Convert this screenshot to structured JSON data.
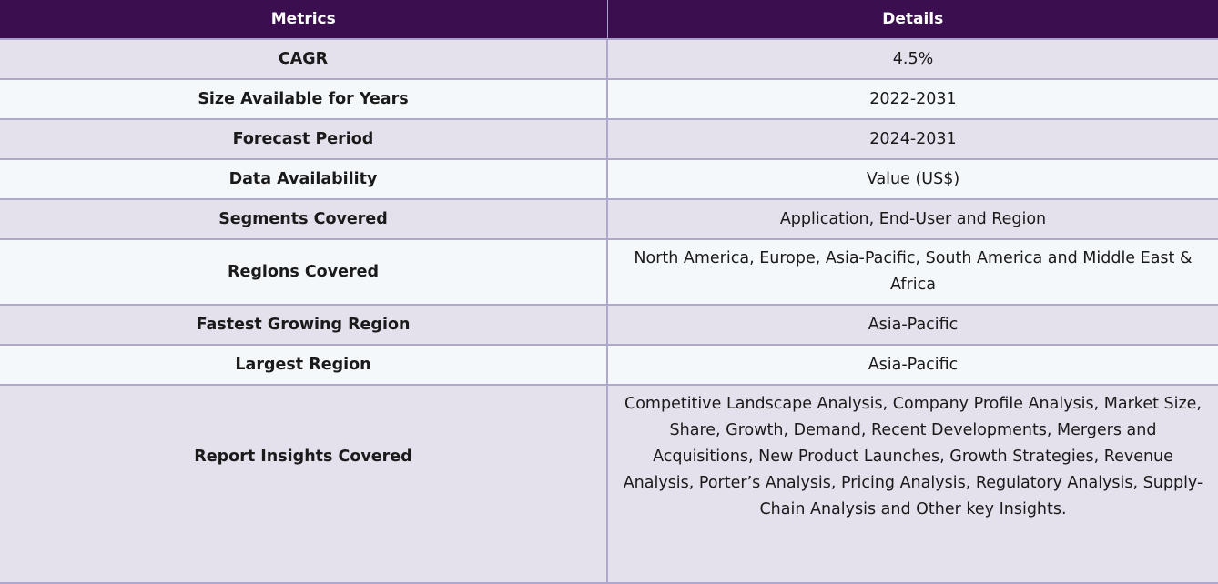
{
  "table": {
    "headers": [
      "Metrics",
      "Details"
    ],
    "rows": [
      {
        "metric": "CAGR",
        "details": "4.5%"
      },
      {
        "metric": "Size Available for Years",
        "details": "2022-2031"
      },
      {
        "metric": "Forecast Period",
        "details": "2024-2031"
      },
      {
        "metric": "Data Availability",
        "details": "Value (US$)"
      },
      {
        "metric": "Segments Covered",
        "details": "Application, End-User and Region"
      },
      {
        "metric": "Regions Covered",
        "details": "North America, Europe, Asia-Pacific, South America and Middle East & Africa"
      },
      {
        "metric": "Fastest Growing Region",
        "details": "Asia-Pacific"
      },
      {
        "metric": "Largest Region",
        "details": "Asia-Pacific"
      },
      {
        "metric": "Report Insights Covered",
        "details": "Competitive Landscape Analysis, Company Profile Analysis, Market Size, Share, Growth, Demand, Recent Developments, Mergers and Acquisitions, New Product Launches, Growth Strategies, Revenue Analysis, Porter’s Analysis, Pricing Analysis, Regulatory Analysis, Supply-Chain Analysis and Other key Insights."
      }
    ]
  }
}
